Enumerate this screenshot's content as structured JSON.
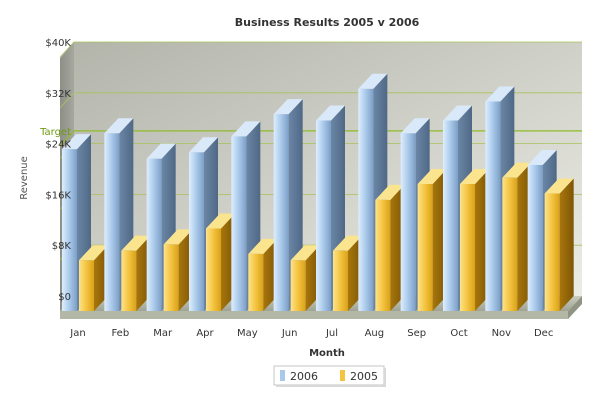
{
  "chart_data": {
    "type": "bar",
    "title": "Business Results 2005 v 2006",
    "xlabel": "Month",
    "ylabel": "Revenue",
    "categories": [
      "Jan",
      "Feb",
      "Mar",
      "Apr",
      "May",
      "Jun",
      "Jul",
      "Aug",
      "Sep",
      "Oct",
      "Nov",
      "Dec"
    ],
    "series": [
      {
        "name": "2006",
        "color": "#a9c9ea",
        "values": [
          25500,
          28000,
          24000,
          25000,
          27500,
          31000,
          30000,
          35000,
          28000,
          30000,
          33000,
          23000
        ]
      },
      {
        "name": "2005",
        "color": "#f4c33f",
        "values": [
          8000,
          9500,
          10500,
          13000,
          9000,
          8000,
          9500,
          17500,
          20000,
          20000,
          21000,
          18500
        ]
      }
    ],
    "ylim": [
      0,
      40000
    ],
    "y_ticks": [
      0,
      8000,
      16000,
      24000,
      32000,
      40000
    ],
    "y_tick_labels": [
      "$0",
      "$8K",
      "$16K",
      "$24K",
      "$32K",
      "$40K"
    ],
    "trendline": {
      "label": "Target",
      "value": 26000,
      "color": "#8fbc2a"
    },
    "grid": true,
    "legend_position": "bottom-center",
    "render_3d": true
  }
}
